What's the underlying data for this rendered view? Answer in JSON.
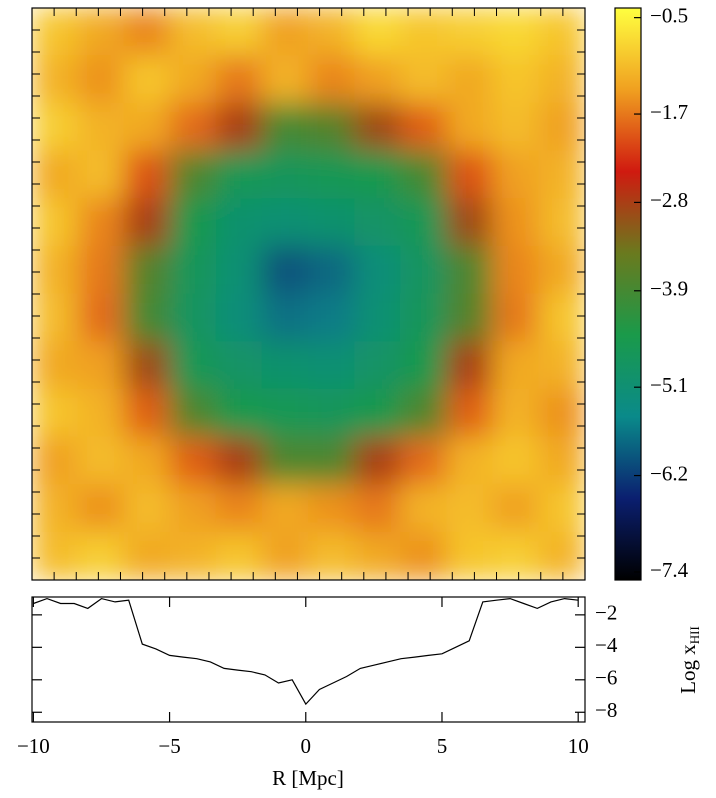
{
  "chart_data": [
    {
      "type": "heatmap",
      "z": [
        [
          -1.0,
          -1.3,
          -1.6,
          -1.1,
          -0.9,
          -1.4,
          -1.2,
          -0.8,
          -1.0,
          -0.9,
          -0.8,
          -1.0
        ],
        [
          -1.2,
          -1.5,
          -1.0,
          -1.3,
          -1.7,
          -1.2,
          -1.6,
          -1.4,
          -1.1,
          -1.3,
          -1.0,
          -1.2
        ],
        [
          -0.9,
          -1.2,
          -1.3,
          -1.8,
          -2.8,
          -3.9,
          -3.7,
          -2.9,
          -1.9,
          -1.3,
          -1.1,
          -1.4
        ],
        [
          -1.3,
          -1.1,
          -2.0,
          -3.8,
          -4.6,
          -4.7,
          -4.6,
          -4.5,
          -3.9,
          -2.0,
          -1.4,
          -1.2
        ],
        [
          -1.0,
          -1.6,
          -2.8,
          -4.5,
          -5.0,
          -5.1,
          -5.0,
          -4.9,
          -4.6,
          -2.9,
          -1.5,
          -1.1
        ],
        [
          -1.2,
          -1.7,
          -3.7,
          -4.7,
          -5.1,
          -6.0,
          -5.8,
          -5.2,
          -4.8,
          -3.8,
          -1.6,
          -1.3
        ],
        [
          -1.1,
          -1.8,
          -3.9,
          -4.8,
          -5.2,
          -5.7,
          -5.6,
          -5.1,
          -4.7,
          -3.7,
          -1.7,
          -1.0
        ],
        [
          -1.3,
          -1.4,
          -2.9,
          -4.6,
          -4.9,
          -5.0,
          -5.1,
          -4.9,
          -4.5,
          -2.8,
          -1.3,
          -1.2
        ],
        [
          -1.0,
          -1.2,
          -1.9,
          -3.8,
          -4.5,
          -4.6,
          -4.7,
          -4.5,
          -3.8,
          -1.9,
          -1.2,
          -1.5
        ],
        [
          -1.4,
          -1.1,
          -1.3,
          -1.9,
          -2.8,
          -3.8,
          -3.8,
          -2.8,
          -1.8,
          -1.2,
          -1.0,
          -1.3
        ],
        [
          -1.2,
          -1.5,
          -1.1,
          -1.4,
          -1.6,
          -1.3,
          -1.5,
          -1.7,
          -1.2,
          -1.1,
          -1.4,
          -1.0
        ],
        [
          -1.1,
          -0.9,
          -1.3,
          -1.2,
          -1.0,
          -1.4,
          -1.1,
          -1.3,
          -1.5,
          -1.0,
          -0.9,
          -1.2
        ]
      ],
      "colormap": [
        "#000000",
        "#0b1f70",
        "#0a8a8a",
        "#1a9a4a",
        "#6a7a1e",
        "#d01a10",
        "#f0a020",
        "#ffff40"
      ],
      "clim": [
        -7.5,
        -0.38
      ],
      "cticks": [
        {
          "value": -0.5,
          "label": "−0.5"
        },
        {
          "value": -1.7,
          "label": "−1.7"
        },
        {
          "value": -2.8,
          "label": "−2.8"
        },
        {
          "value": -3.9,
          "label": "−3.9"
        },
        {
          "value": -5.1,
          "label": "−5.1"
        },
        {
          "value": -6.2,
          "label": "−6.2"
        },
        {
          "value": -7.4,
          "label": "−7.4"
        }
      ]
    },
    {
      "type": "line",
      "x": [
        -10,
        -9.5,
        -9,
        -8.5,
        -8,
        -7.5,
        -7,
        -6.5,
        -6,
        -5.5,
        -5,
        -4.5,
        -4,
        -3.5,
        -3,
        -2.5,
        -2,
        -1.5,
        -1,
        -0.5,
        0,
        0.5,
        1,
        1.5,
        2,
        2.5,
        3,
        3.5,
        4,
        4.5,
        5,
        5.5,
        6,
        6.5,
        7,
        7.5,
        8,
        8.5,
        9,
        9.5,
        10
      ],
      "values": [
        -1.3,
        -1.0,
        -1.3,
        -1.3,
        -1.6,
        -1.0,
        -1.2,
        -1.1,
        -3.8,
        -4.1,
        -4.5,
        -4.6,
        -4.7,
        -4.9,
        -5.3,
        -5.4,
        -5.5,
        -5.7,
        -6.2,
        -6.0,
        -7.5,
        -6.6,
        -6.2,
        -5.8,
        -5.3,
        -5.1,
        -4.9,
        -4.7,
        -4.6,
        -4.5,
        -4.4,
        -4.0,
        -3.6,
        -1.2,
        -1.1,
        -1.0,
        -1.3,
        -1.6,
        -1.2,
        -1.0,
        -1.1
      ],
      "color": "#000000",
      "xlim": [
        -10.05,
        10.25
      ],
      "ylim": [
        -8.6,
        -0.9
      ],
      "xticks": [
        {
          "value": -10,
          "label": "−10"
        },
        {
          "value": -5,
          "label": "−5"
        },
        0,
        5,
        10
      ],
      "yticks": [
        {
          "value": -2,
          "label": "−2"
        },
        {
          "value": -4,
          "label": "−4"
        },
        {
          "value": -6,
          "label": "−6"
        },
        {
          "value": -8,
          "label": "−8"
        }
      ],
      "xlabel": "R [Mpc]",
      "ylabel": "Log x",
      "ylabel_sub": "HII"
    }
  ]
}
